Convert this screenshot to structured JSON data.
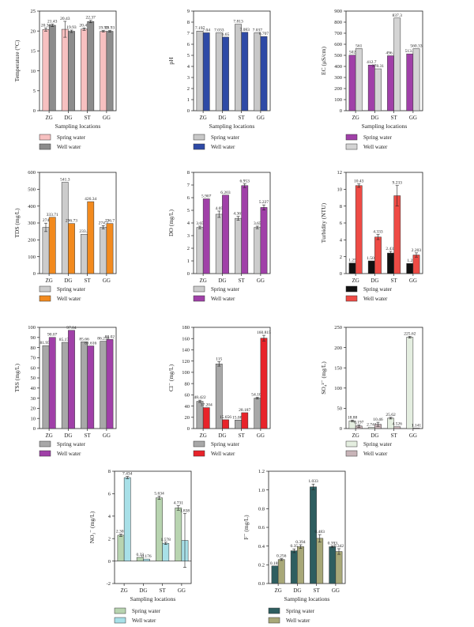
{
  "chart_data": [
    {
      "id": "temperature",
      "type": "bar",
      "ylabel": "Temperature (°C)",
      "xlabel": "Sampling locations",
      "ylim": [
        0,
        25
      ],
      "yticks": [
        0,
        5,
        10,
        15,
        20,
        25
      ],
      "categories": [
        "ZG",
        "DG",
        "ST",
        "GG"
      ],
      "series": [
        {
          "name": "Spring water",
          "color": "#f7c0c0",
          "values": [
            20.36,
            20.43,
            20.47,
            19.93
          ],
          "errors": [
            0.4,
            2.0,
            0.3,
            0.2
          ],
          "labels": [
            "20.36",
            "20.43",
            "20.47",
            "19.93"
          ]
        },
        {
          "name": "Well water",
          "color": "#8c8c8c",
          "values": [
            21.43,
            19.93,
            22.37,
            19.93
          ],
          "errors": [
            0.3,
            0.3,
            0.3,
            0.2
          ],
          "labels": [
            "21.43",
            "19.93",
            "22.37",
            "19.93"
          ]
        }
      ],
      "grid": false,
      "legend": "bottom"
    },
    {
      "id": "ph",
      "type": "bar",
      "ylabel": "pH",
      "xlabel": "Sampling locations",
      "ylim": [
        0,
        9
      ],
      "yticks": [
        0,
        1,
        2,
        3,
        4,
        5,
        6,
        7,
        8,
        9
      ],
      "categories": [
        "ZG",
        "DG",
        "ST",
        "GG"
      ],
      "series": [
        {
          "name": "Spring water",
          "color": "#c8c8c8",
          "values": [
            7.197,
            7.033,
            7.813,
            7.037
          ],
          "errors": [
            0,
            0,
            0,
            0
          ],
          "labels": [
            "7.197",
            "7.033",
            "7.813",
            "7.037"
          ]
        },
        {
          "name": "Well water",
          "color": "#2e4aa6",
          "values": [
            7.04,
            6.65,
            7.083,
            6.707
          ],
          "errors": [
            0,
            0,
            0,
            0
          ],
          "labels": [
            "7.04",
            "6.65",
            "7.083",
            "6.707"
          ]
        }
      ],
      "grid": false,
      "legend": "bottom"
    },
    {
      "id": "ec",
      "type": "bar",
      "ylabel": "EC (μS/cm)",
      "xlabel": "Sampling locations",
      "ylim": [
        0,
        900
      ],
      "yticks": [
        0,
        100,
        200,
        300,
        400,
        500,
        600,
        700,
        800,
        900
      ],
      "categories": [
        "ZG",
        "DG",
        "ST",
        "GG"
      ],
      "series": [
        {
          "name": "Spring water",
          "color": "#a040a8",
          "values": [
            502,
            412.7,
            496.5,
            513.3
          ],
          "errors": [
            0,
            0,
            0,
            0
          ],
          "labels": [
            "502",
            "412.7",
            "496.5",
            "513.3"
          ]
        },
        {
          "name": "Well water",
          "color": "#d4d4d4",
          "values": [
            561,
            378.31,
            837.3,
            560.33
          ],
          "errors": [
            0,
            0,
            0,
            0
          ],
          "labels": [
            "561",
            "378.31",
            "837.3",
            "560.33"
          ]
        }
      ],
      "grid": false,
      "legend": "bottom"
    },
    {
      "id": "tds",
      "type": "bar",
      "ylabel": "TDS (mg/L)",
      "xlabel": "",
      "ylim": [
        0,
        600
      ],
      "yticks": [
        0,
        100,
        200,
        300,
        400,
        500,
        600
      ],
      "categories": [
        "ZG",
        "DG",
        "ST",
        "GG"
      ],
      "series": [
        {
          "name": "Spring water",
          "color": "#cccccc",
          "values": [
            274,
            541.3,
            233.3,
            274.7
          ],
          "errors": [
            25,
            0,
            0,
            10
          ],
          "labels": [
            "274",
            "541.3",
            "233.3",
            "274.7"
          ]
        },
        {
          "name": "Well water",
          "color": "#f28a1e",
          "values": [
            333.71,
            296.73,
            426.34,
            296.7
          ],
          "errors": [
            0,
            0,
            0,
            0
          ],
          "labels": [
            "333.71",
            "296.73",
            "426.34",
            "296.7"
          ]
        }
      ],
      "grid": false,
      "legend": "bottom"
    },
    {
      "id": "do",
      "type": "bar",
      "ylabel": "DO (mg/L)",
      "xlabel": "",
      "ylim": [
        0,
        8
      ],
      "yticks": [
        0,
        1,
        2,
        3,
        4,
        5,
        6,
        7,
        8
      ],
      "categories": [
        "ZG",
        "DG",
        "ST",
        "GG"
      ],
      "series": [
        {
          "name": "Spring water",
          "color": "#cccccc",
          "values": [
            3.65,
            4.69,
            4.367,
            3.65
          ],
          "errors": [
            0.1,
            0.25,
            0.15,
            0.1
          ],
          "labels": [
            "3.65",
            "4.69",
            "4.367",
            "3.65"
          ]
        },
        {
          "name": "Well water",
          "color": "#a040a8",
          "values": [
            5.907,
            6.203,
            6.953,
            5.227
          ],
          "errors": [
            0,
            0,
            0.15,
            0.2
          ],
          "labels": [
            "5.907",
            "6.203",
            "6.953",
            "5.227"
          ]
        }
      ],
      "grid": false,
      "legend": "bottom"
    },
    {
      "id": "turbidity",
      "type": "bar",
      "ylabel": "Turbidity (NTU)",
      "xlabel": "",
      "ylim": [
        0,
        12
      ],
      "yticks": [
        0,
        2,
        4,
        6,
        8,
        10,
        12
      ],
      "categories": [
        "ZG",
        "DG",
        "ST",
        "GG"
      ],
      "series": [
        {
          "name": "Spring water",
          "color": "#111111",
          "values": [
            1.25,
            1.503,
            2.433,
            1.2
          ],
          "errors": [
            0,
            0,
            0.2,
            0
          ],
          "labels": [
            "1.25",
            "1.503",
            "2.433",
            "1.2"
          ]
        },
        {
          "name": "Well water",
          "color": "#ee4b45",
          "values": [
            10.43,
            4.333,
            9.233,
            2.203
          ],
          "errors": [
            0.2,
            0.3,
            1.2,
            0.25
          ],
          "labels": [
            "10.43",
            "4.333",
            "9.233",
            "2.203"
          ]
        }
      ],
      "grid": false,
      "legend": "bottom"
    },
    {
      "id": "tss",
      "type": "bar",
      "ylabel": "TSS (mg/L)",
      "xlabel": "",
      "ylim": [
        0,
        100
      ],
      "yticks": [
        0,
        10,
        20,
        30,
        40,
        50,
        60,
        70,
        80,
        90,
        100
      ],
      "categories": [
        "ZG",
        "DG",
        "ST",
        "GG"
      ],
      "series": [
        {
          "name": "Spring water",
          "color": "#a8a8a8",
          "values": [
            81.956,
            85.178,
            85.66,
            86.238
          ],
          "errors": [
            0,
            0,
            0,
            0
          ],
          "labels": [
            "81.956",
            "85.178",
            "85.66",
            "86.238"
          ]
        },
        {
          "name": "Well water",
          "color": "#a040a8",
          "values": [
            90.07,
            97.04,
            81.616,
            88.02
          ],
          "errors": [
            0,
            0,
            0,
            0
          ],
          "labels": [
            "90.07",
            "97.04",
            "81.616",
            "88.02"
          ]
        }
      ],
      "grid": false,
      "legend": "bottom"
    },
    {
      "id": "cl",
      "type": "bar",
      "ylabel": "Cl⁻ (mg/L)",
      "xlabel": "",
      "ylim": [
        0,
        180
      ],
      "yticks": [
        0,
        20,
        40,
        60,
        80,
        100,
        120,
        140,
        160,
        180
      ],
      "categories": [
        "ZG",
        "DG",
        "ST",
        "GG"
      ],
      "series": [
        {
          "name": "Spring water",
          "color": "#a8a8a8",
          "values": [
            48.422,
            115,
            15.088,
            54.102
          ],
          "errors": [
            2,
            4,
            0,
            1.5
          ],
          "labels": [
            "48.422",
            "115",
            "15.088",
            "54.102"
          ]
        },
        {
          "name": "Well water",
          "color": "#e8232a",
          "values": [
            37.204,
            15.656,
            28.187,
            160.815
          ],
          "errors": [
            0,
            0,
            0,
            5
          ],
          "labels": [
            "37.204",
            "15.656",
            "28.187",
            "160.815"
          ]
        }
      ],
      "grid": false,
      "legend": "bottom"
    },
    {
      "id": "so4",
      "type": "bar",
      "ylabel": "SO₄²⁻ (mg/L)",
      "xlabel": "",
      "ylim": [
        0,
        250
      ],
      "yticks": [
        0,
        50,
        100,
        150,
        200,
        250
      ],
      "categories": [
        "ZG",
        "DG",
        "ST",
        "GG"
      ],
      "series": [
        {
          "name": "Spring water",
          "color": "#e4eee0",
          "values": [
            18.88,
            2.741,
            25.62,
            225.62
          ],
          "errors": [
            2,
            0,
            2,
            2
          ],
          "labels": [
            "18.88",
            "2.741",
            "25.62",
            "225.62"
          ]
        },
        {
          "name": "Well water",
          "color": "#c8b4b8",
          "values": [
            6.197,
            10.46,
            4.526,
            1.141
          ],
          "errors": [
            3,
            5,
            0,
            0
          ],
          "labels": [
            "6.197",
            "10.46",
            "4.526",
            "1.141"
          ]
        }
      ],
      "grid": false,
      "legend": "bottom"
    },
    {
      "id": "no3",
      "type": "bar",
      "ylabel": "NO₃⁻ (mg/L)",
      "xlabel": "Sampling locations",
      "ylim": [
        -2,
        8
      ],
      "yticks": [
        -2,
        0,
        2,
        4,
        6,
        8
      ],
      "categories": [
        "ZG",
        "DG",
        "ST",
        "GG"
      ],
      "series": [
        {
          "name": "Spring water",
          "color": "#b8d4b0",
          "values": [
            2.301,
            0.33,
            5.634,
            4.731
          ],
          "errors": [
            0.1,
            0,
            0.15,
            0.2
          ],
          "labels": [
            "2.301",
            "0.33",
            "5.634",
            "4.731"
          ]
        },
        {
          "name": "Well water",
          "color": "#a8e0e8",
          "values": [
            7.434,
            0.176,
            1.578,
            1.838
          ],
          "errors": [
            0.1,
            0,
            0.1,
            2.4
          ],
          "labels": [
            "7.434",
            "0.176",
            "1.578",
            "1.838"
          ]
        }
      ],
      "grid": false,
      "legend": "bottom"
    },
    {
      "id": "f",
      "type": "bar",
      "ylabel": "F⁻ (mg/L)",
      "xlabel": "Sampling locations",
      "ylim": [
        0,
        1.2
      ],
      "yticks": [
        0.0,
        0.2,
        0.4,
        0.6,
        0.8,
        1.0,
        1.2
      ],
      "categories": [
        "ZG",
        "DG",
        "ST",
        "GG"
      ],
      "series": [
        {
          "name": "Spring water",
          "color": "#2e5e60",
          "values": [
            0.188,
            0.35,
            1.033,
            0.393
          ],
          "errors": [
            0,
            0.02,
            0.03,
            0.01
          ],
          "labels": [
            "0.188",
            "0.35",
            "1.033",
            "0.393"
          ]
        },
        {
          "name": "Well water",
          "color": "#a8a878",
          "values": [
            0.256,
            0.394,
            0.483,
            0.342
          ],
          "errors": [
            0.01,
            0.02,
            0.04,
            0.03
          ],
          "labels": [
            "0.256",
            "0.394",
            "0.483",
            "0.342"
          ]
        }
      ],
      "grid": false,
      "legend": "bottom"
    }
  ]
}
